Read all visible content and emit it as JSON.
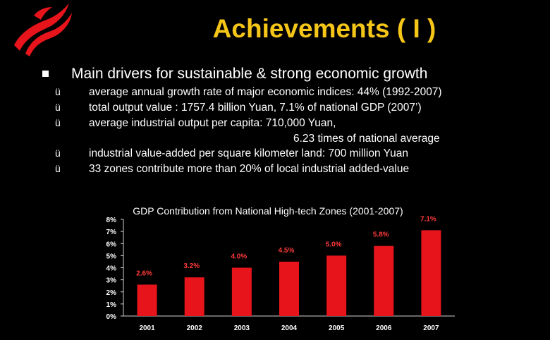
{
  "slide": {
    "title": "Achievements ( I )",
    "main_bullet": "Main drivers for sustainable & strong economic growth",
    "check_glyph": "ü",
    "sub_bullets": [
      "average annual growth rate of major economic indices: 44% (1992-2007)",
      "total output value :  1757.4 billion Yuan, 7.1% of national GDP (2007’)",
      "average industrial output per capita: 710,000 Yuan,",
      "6.23 times of national average",
      "industrial value-added per square kilometer land: 700 million Yuan",
      "33  zones contribute more than 20% of local industrial added-value"
    ]
  },
  "colors": {
    "background": "#000000",
    "title": "#f5c518",
    "bar": "#e8141c",
    "data_label": "#ff3a3a",
    "axis": "#cfcfcf",
    "logo": "#e8141c"
  },
  "icons": {
    "logo": "red-ribbon-logo-icon",
    "main_bullet": "square-bullet-icon"
  },
  "chart_data": {
    "type": "bar",
    "title": "GDP Contribution from National High-tech Zones (2001-2007)",
    "categories": [
      "2001",
      "2002",
      "2003",
      "2004",
      "2005",
      "2006",
      "2007"
    ],
    "values": [
      2.6,
      3.2,
      4.0,
      4.5,
      5.0,
      5.8,
      7.1
    ],
    "data_labels": [
      "2.6%",
      "3.2%",
      "4.0%",
      "4.5%",
      "5.0%",
      "5.8%",
      "7.1%"
    ],
    "y_ticks": [
      "0%",
      "1%",
      "2%",
      "3%",
      "4%",
      "5%",
      "6%",
      "7%",
      "8%"
    ],
    "ylim": [
      0,
      8
    ],
    "xlabel": "",
    "ylabel": "",
    "grid": false,
    "legend": "none"
  }
}
